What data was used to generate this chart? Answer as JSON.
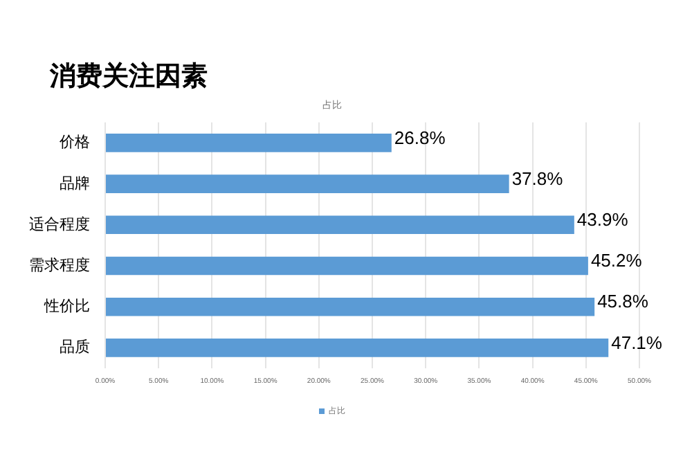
{
  "chart_data": {
    "type": "bar",
    "title": "消费关注因素",
    "subtitle": "占比",
    "orientation": "horizontal",
    "categories": [
      "价格",
      "品牌",
      "适合程度",
      "需求程度",
      "性价比",
      "品质"
    ],
    "series": [
      {
        "name": "占比",
        "color": "#5b9bd5",
        "values": [
          26.8,
          37.8,
          43.9,
          45.2,
          45.8,
          47.1
        ],
        "value_labels": [
          "26.8%",
          "37.8%",
          "43.9%",
          "45.2%",
          "45.8%",
          "47.1%"
        ]
      }
    ],
    "xlim": [
      0,
      50
    ],
    "xticks": [
      {
        "value": 0,
        "label": "0.00%"
      },
      {
        "value": 5,
        "label": "5.00%"
      },
      {
        "value": 10,
        "label": "10.00%"
      },
      {
        "value": 15,
        "label": "15.00%"
      },
      {
        "value": 20,
        "label": "20.00%"
      },
      {
        "value": 25,
        "label": "25.00%"
      },
      {
        "value": 30,
        "label": "30.00%"
      },
      {
        "value": 35,
        "label": "35.00%"
      },
      {
        "value": 40,
        "label": "40.00%"
      },
      {
        "value": 45,
        "label": "45.00%"
      },
      {
        "value": 50,
        "label": "50.00%"
      }
    ],
    "grid": "x",
    "legend": "bottom"
  }
}
